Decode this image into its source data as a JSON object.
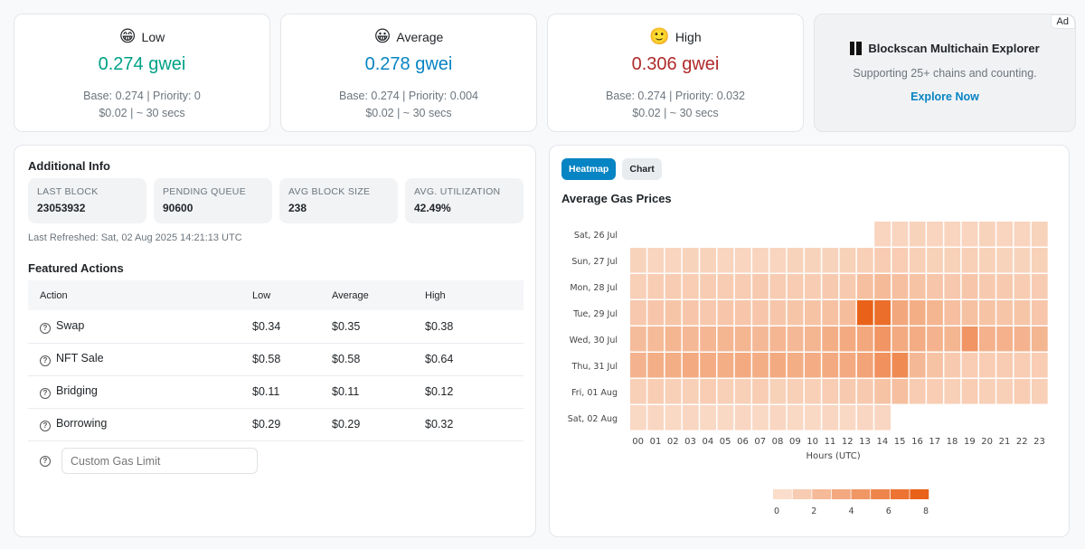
{
  "gas_cards": [
    {
      "label": "Low",
      "emoji": "😁",
      "price": "0.274 gwei",
      "color": "#00a186",
      "breakdown": "Base: 0.274 | Priority: 0",
      "cost": "$0.02 | ~ 30 secs"
    },
    {
      "label": "Average",
      "emoji": "😀",
      "price": "0.278 gwei",
      "color": "#0784c3",
      "breakdown": "Base: 0.274 | Priority: 0.004",
      "cost": "$0.02 | ~ 30 secs"
    },
    {
      "label": "High",
      "emoji": "🙂",
      "price": "0.306 gwei",
      "color": "#b02a2a",
      "breakdown": "Base: 0.274 | Priority: 0.032",
      "cost": "$0.02 | ~ 30 secs"
    }
  ],
  "ad": {
    "tag": "Ad",
    "title": "Blockscan Multichain Explorer",
    "subtitle": "Supporting 25+ chains and counting.",
    "link": "Explore Now"
  },
  "additional_info": {
    "title": "Additional Info",
    "stats": [
      {
        "label": "LAST BLOCK",
        "value": "23053932"
      },
      {
        "label": "PENDING QUEUE",
        "value": "90600"
      },
      {
        "label": "AVG BLOCK SIZE",
        "value": "238"
      },
      {
        "label": "AVG. UTILIZATION",
        "value": "42.49%"
      }
    ],
    "refreshed": "Last Refreshed: Sat, 02 Aug 2025 14:21:13 UTC"
  },
  "featured": {
    "title": "Featured Actions",
    "headers": [
      "Action",
      "Low",
      "Average",
      "High"
    ],
    "rows": [
      {
        "action": "Swap",
        "low": "$0.34",
        "average": "$0.35",
        "high": "$0.38"
      },
      {
        "action": "NFT Sale",
        "low": "$0.58",
        "average": "$0.58",
        "high": "$0.64"
      },
      {
        "action": "Bridging",
        "low": "$0.11",
        "average": "$0.11",
        "high": "$0.12"
      },
      {
        "action": "Borrowing",
        "low": "$0.29",
        "average": "$0.29",
        "high": "$0.32"
      }
    ],
    "custom_placeholder": "Custom Gas Limit"
  },
  "heatmap_panel": {
    "tabs": [
      {
        "label": "Heatmap",
        "active": true
      },
      {
        "label": "Chart",
        "active": false
      }
    ],
    "title": "Average Gas Prices"
  },
  "chart_data": {
    "type": "heatmap",
    "title": "Average Gas Prices",
    "xlabel": "Hours (UTC)",
    "x": [
      "00",
      "01",
      "02",
      "03",
      "04",
      "05",
      "06",
      "07",
      "08",
      "09",
      "10",
      "11",
      "12",
      "13",
      "14",
      "15",
      "16",
      "17",
      "18",
      "19",
      "20",
      "21",
      "22",
      "23"
    ],
    "y": [
      "Sat, 26 Jul",
      "Sun, 27 Jul",
      "Mon, 28 Jul",
      "Tue, 29 Jul",
      "Wed, 30 Jul",
      "Thu, 31 Jul",
      "Fri, 01 Aug",
      "Sat, 02 Aug"
    ],
    "values": [
      [
        null,
        null,
        null,
        null,
        null,
        null,
        null,
        null,
        null,
        null,
        null,
        null,
        null,
        null,
        1.0,
        1.0,
        1.1,
        1.0,
        1.0,
        1.0,
        1.1,
        1.0,
        1.0,
        1.1
      ],
      [
        1.1,
        1.0,
        1.0,
        1.1,
        1.1,
        1.0,
        1.0,
        1.0,
        1.0,
        1.1,
        1.1,
        1.1,
        1.2,
        1.3,
        1.5,
        1.4,
        1.3,
        1.2,
        1.2,
        1.3,
        1.2,
        1.1,
        1.1,
        1.2
      ],
      [
        1.3,
        1.4,
        1.5,
        1.4,
        1.5,
        1.5,
        1.5,
        1.6,
        1.5,
        1.5,
        1.5,
        1.6,
        1.6,
        2.2,
        2.5,
        2.2,
        2.0,
        1.8,
        1.7,
        1.8,
        1.6,
        1.6,
        1.5,
        1.5
      ],
      [
        1.7,
        1.8,
        1.9,
        1.8,
        1.7,
        1.8,
        1.8,
        1.8,
        1.8,
        1.9,
        2.0,
        2.1,
        2.3,
        7.5,
        6.8,
        3.6,
        3.2,
        2.8,
        2.2,
        2.1,
        2.0,
        1.9,
        1.9,
        1.8
      ],
      [
        2.4,
        2.5,
        2.8,
        2.6,
        2.7,
        2.8,
        2.8,
        2.6,
        2.7,
        2.6,
        2.8,
        3.2,
        3.4,
        3.6,
        4.6,
        3.4,
        3.3,
        2.9,
        2.8,
        4.6,
        3.0,
        3.0,
        2.9,
        2.8
      ],
      [
        2.9,
        3.2,
        3.2,
        3.4,
        3.3,
        3.2,
        3.4,
        3.2,
        3.4,
        3.2,
        3.3,
        3.4,
        3.4,
        3.8,
        4.8,
        5.2,
        2.6,
        2.0,
        1.6,
        1.4,
        1.4,
        1.5,
        1.4,
        1.4
      ],
      [
        1.3,
        1.4,
        1.3,
        1.3,
        1.4,
        1.3,
        1.3,
        1.4,
        1.2,
        1.3,
        1.3,
        1.4,
        1.6,
        1.6,
        2.0,
        2.2,
        1.5,
        1.4,
        1.3,
        1.4,
        1.3,
        1.3,
        1.4,
        1.3
      ],
      [
        0.8,
        0.9,
        0.8,
        0.9,
        0.8,
        0.8,
        0.9,
        0.8,
        0.9,
        0.8,
        0.8,
        0.9,
        0.8,
        0.9,
        0.9,
        null,
        null,
        null,
        null,
        null,
        null,
        null,
        null,
        null
      ]
    ],
    "scale": {
      "min": 0,
      "max": 8,
      "ticks": [
        "0",
        "2",
        "4",
        "6",
        "8"
      ],
      "color_low": "#fbe6d8",
      "color_high": "#e8590c"
    }
  }
}
